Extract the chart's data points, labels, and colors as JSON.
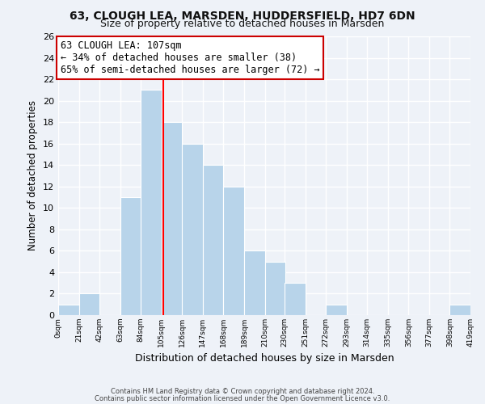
{
  "title1": "63, CLOUGH LEA, MARSDEN, HUDDERSFIELD, HD7 6DN",
  "title2": "Size of property relative to detached houses in Marsden",
  "xlabel": "Distribution of detached houses by size in Marsden",
  "ylabel": "Number of detached properties",
  "bin_edges": [
    0,
    21,
    42,
    63,
    84,
    105,
    126,
    147,
    168,
    189,
    210,
    230,
    251,
    272,
    293,
    314,
    335,
    356,
    377,
    398,
    419
  ],
  "counts": [
    1,
    2,
    0,
    11,
    21,
    18,
    16,
    14,
    12,
    6,
    5,
    3,
    0,
    1,
    0,
    0,
    0,
    0,
    0,
    1
  ],
  "bar_color": "#b8d4ea",
  "bar_edge_color": "#ffffff",
  "vline_x": 107,
  "vline_color": "red",
  "annotation_line1": "63 CLOUGH LEA: 107sqm",
  "annotation_line2": "← 34% of detached houses are smaller (38)",
  "annotation_line3": "65% of semi-detached houses are larger (72) →",
  "annotation_box_color": "#ffffff",
  "annotation_box_edge": "#cc0000",
  "ylim": [
    0,
    26
  ],
  "yticks": [
    0,
    2,
    4,
    6,
    8,
    10,
    12,
    14,
    16,
    18,
    20,
    22,
    24,
    26
  ],
  "xtick_labels": [
    "0sqm",
    "21sqm",
    "42sqm",
    "63sqm",
    "84sqm",
    "105sqm",
    "126sqm",
    "147sqm",
    "168sqm",
    "189sqm",
    "210sqm",
    "230sqm",
    "251sqm",
    "272sqm",
    "293sqm",
    "314sqm",
    "335sqm",
    "356sqm",
    "377sqm",
    "398sqm",
    "419sqm"
  ],
  "footer1": "Contains HM Land Registry data © Crown copyright and database right 2024.",
  "footer2": "Contains public sector information licensed under the Open Government Licence v3.0.",
  "bg_color": "#eef2f8",
  "grid_color": "#ffffff",
  "title1_fontsize": 10,
  "title2_fontsize": 9,
  "annotation_fontsize": 8.5
}
